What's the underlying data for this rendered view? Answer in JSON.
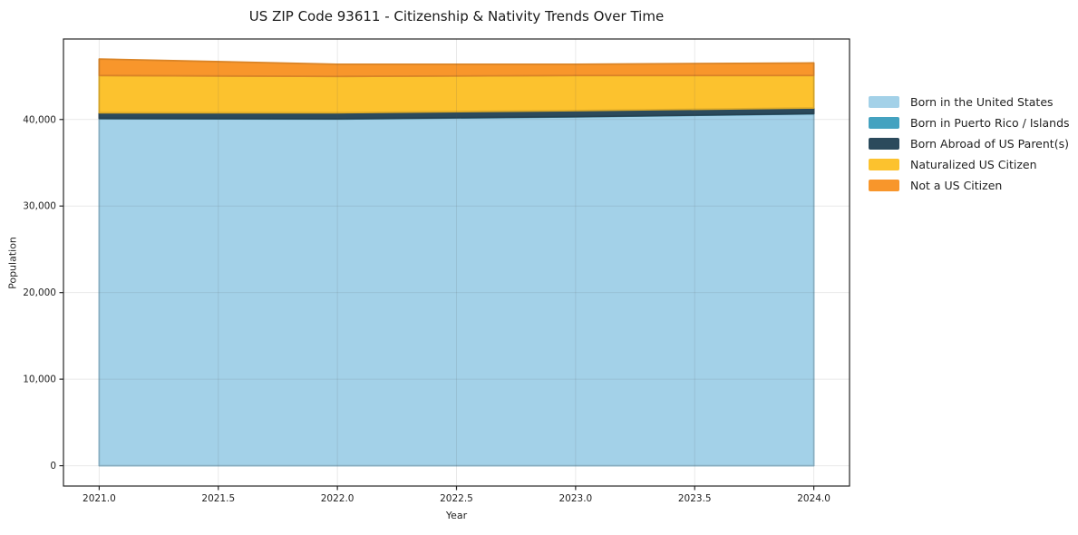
{
  "chart_data": {
    "type": "area",
    "stacked": true,
    "title": "US ZIP Code 93611 - Citizenship & Nativity Trends Over Time",
    "xlabel": "Year",
    "ylabel": "Population",
    "x": [
      2021,
      2022,
      2023,
      2024
    ],
    "series": [
      {
        "name": "Born in the United States",
        "color": "#a3d1e8",
        "values": [
          40100,
          40050,
          40300,
          40650
        ]
      },
      {
        "name": "Born in Puerto Rico / Islands",
        "color": "#44a2c0",
        "values": [
          30,
          30,
          30,
          30
        ]
      },
      {
        "name": "Born Abroad of US Parent(s)",
        "color": "#2b4a5c",
        "values": [
          650,
          700,
          700,
          650
        ]
      },
      {
        "name": "Naturalized US Citizen",
        "color": "#fcc22e",
        "values": [
          4300,
          4200,
          4050,
          3750
        ]
      },
      {
        "name": "Not a US Citizen",
        "color": "#f8962b",
        "values": [
          1900,
          1400,
          1300,
          1450
        ]
      }
    ],
    "xlim": [
      2020.85,
      2024.15
    ],
    "ylim": [
      -2348,
      49298
    ],
    "x_ticks": [
      {
        "value": 2021.0,
        "label": "2021.0"
      },
      {
        "value": 2021.5,
        "label": "2021.5"
      },
      {
        "value": 2022.0,
        "label": "2022.0"
      },
      {
        "value": 2022.5,
        "label": "2022.5"
      },
      {
        "value": 2023.0,
        "label": "2023.0"
      },
      {
        "value": 2023.5,
        "label": "2023.5"
      },
      {
        "value": 2024.0,
        "label": "2024.0"
      }
    ],
    "y_ticks": [
      {
        "value": 0,
        "label": "0"
      },
      {
        "value": 10000,
        "label": "10,000"
      },
      {
        "value": 20000,
        "label": "20,000"
      },
      {
        "value": 30000,
        "label": "30,000"
      },
      {
        "value": 40000,
        "label": "40,000"
      }
    ],
    "grid": true,
    "legend_position": "right-outside",
    "colors": {
      "background": "#ffffff",
      "spine": "#262626",
      "tick_text": "#1f1f1f",
      "grid": "#e2e2e2"
    }
  }
}
